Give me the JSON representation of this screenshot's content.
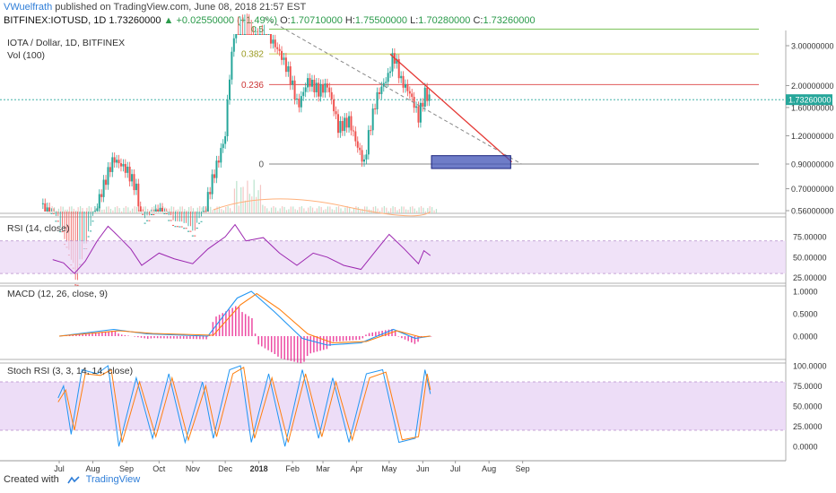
{
  "header": {
    "author": "VWuelfrath",
    "published": "published on TradingView.com, June 08, 2018 21:57 EST",
    "symbol": "BITFINEX:IOTUSD, 1D",
    "last": "1.73260000",
    "change": "+0.02550000 (+1.49%)",
    "o_label": "O:",
    "o": "1.70710000",
    "h_label": "H:",
    "h": "1.75500000",
    "l_label": "L:",
    "l": "1.70280000",
    "c_label": "C:",
    "c": "1.73260000"
  },
  "colors": {
    "up": "#26a69a",
    "down": "#ef5350",
    "price_line": "#26a69a",
    "fib_green": "#7cc35a",
    "fib_yellow": "#c9d14f",
    "fib_red": "#e05a5a",
    "fib_zero": "#888888",
    "rsi": "#9c27b0",
    "rsi_band": "#e9d5f5",
    "macd": "#2196f3",
    "signal": "#ff7f0e",
    "hist": "#e91e8c",
    "stoch_k": "#2196f3",
    "stoch_d": "#ff7f0e",
    "box_fill": "#3f51b5"
  },
  "chart_data": [
    {
      "type": "candlestick",
      "title": "IOTA / Dollar, 1D, BITFINEX",
      "volume_label": "Vol (100)",
      "y_scale": "log",
      "y_ticks": [
        "3.00000000",
        "2.00000000",
        "1.60000000",
        "1.20000000",
        "0.90000000",
        "0.70000000",
        "0.56000000"
      ],
      "last_price_label": "1.73260000",
      "x_ticks": [
        "Jul",
        "Aug",
        "Sep",
        "Oct",
        "Nov",
        "Dec",
        "2018",
        "Feb",
        "Mar",
        "Apr",
        "May",
        "Jun",
        "Jul",
        "Aug",
        "Sep"
      ],
      "fib_levels": [
        {
          "label": "0.5",
          "value": 3.55
        },
        {
          "label": "0.382",
          "value": 2.76
        },
        {
          "label": "0.236",
          "value": 2.02
        },
        {
          "label": "0",
          "value": 0.9
        }
      ],
      "close_series": [
        [
          "2017-06-15",
          0.6
        ],
        [
          "2017-07-01",
          0.45
        ],
        [
          "2017-07-16",
          0.25
        ],
        [
          "2017-07-28",
          0.42
        ],
        [
          "2017-08-10",
          0.7
        ],
        [
          "2017-08-20",
          0.95
        ],
        [
          "2017-09-01",
          0.85
        ],
        [
          "2017-09-10",
          0.7
        ],
        [
          "2017-09-15",
          0.48
        ],
        [
          "2017-10-01",
          0.55
        ],
        [
          "2017-10-15",
          0.47
        ],
        [
          "2017-11-01",
          0.42
        ],
        [
          "2017-11-12",
          0.55
        ],
        [
          "2017-11-25",
          0.95
        ],
        [
          "2017-12-01",
          1.2
        ],
        [
          "2017-12-07",
          2.7
        ],
        [
          "2017-12-12",
          4.5
        ],
        [
          "2017-12-20",
          4.6
        ],
        [
          "2017-12-28",
          3.8
        ],
        [
          "2018-01-05",
          4.2
        ],
        [
          "2018-01-12",
          3.2
        ],
        [
          "2018-01-20",
          2.8
        ],
        [
          "2018-01-28",
          2.3
        ],
        [
          "2018-02-06",
          1.6
        ],
        [
          "2018-02-15",
          2.1
        ],
        [
          "2018-02-25",
          1.9
        ],
        [
          "2018-03-05",
          2.0
        ],
        [
          "2018-03-15",
          1.3
        ],
        [
          "2018-03-25",
          1.4
        ],
        [
          "2018-04-01",
          1.1
        ],
        [
          "2018-04-08",
          0.9
        ],
        [
          "2018-04-20",
          1.8
        ],
        [
          "2018-04-30",
          2.2
        ],
        [
          "2018-05-05",
          2.75
        ],
        [
          "2018-05-12",
          2.1
        ],
        [
          "2018-05-20",
          1.85
        ],
        [
          "2018-05-28",
          1.45
        ],
        [
          "2018-06-03",
          1.85
        ],
        [
          "2018-06-08",
          1.73
        ]
      ],
      "downtrend_line": [
        [
          "2018-05-02",
          2.75
        ],
        [
          "2018-08-22",
          0.92
        ]
      ],
      "dashed_trend_line": [
        [
          "2018-01-06",
          4.0
        ],
        [
          "2018-08-31",
          0.9
        ]
      ],
      "target_box": {
        "x_from": "2018-06-09",
        "x_to": "2018-08-21",
        "y_from": 0.86,
        "y_to": 0.98
      }
    },
    {
      "type": "line",
      "title": "RSI (14, close)",
      "y_ticks": [
        "75.00000",
        "50.00000",
        "25.00000"
      ],
      "band": [
        30,
        70
      ],
      "series": [
        {
          "name": "RSI",
          "values": [
            [
              "2017-06-25",
              47
            ],
            [
              "2017-07-05",
              43
            ],
            [
              "2017-07-15",
              30
            ],
            [
              "2017-07-25",
              45
            ],
            [
              "2017-08-05",
              70
            ],
            [
              "2017-08-15",
              88
            ],
            [
              "2017-08-25",
              75
            ],
            [
              "2017-09-05",
              60
            ],
            [
              "2017-09-15",
              40
            ],
            [
              "2017-10-01",
              55
            ],
            [
              "2017-10-15",
              48
            ],
            [
              "2017-11-01",
              42
            ],
            [
              "2017-11-15",
              60
            ],
            [
              "2017-12-01",
              75
            ],
            [
              "2017-12-10",
              90
            ],
            [
              "2017-12-20",
              70
            ],
            [
              "2018-01-05",
              74
            ],
            [
              "2018-01-20",
              55
            ],
            [
              "2018-02-05",
              40
            ],
            [
              "2018-02-20",
              55
            ],
            [
              "2018-03-05",
              50
            ],
            [
              "2018-03-20",
              40
            ],
            [
              "2018-04-05",
              35
            ],
            [
              "2018-04-20",
              60
            ],
            [
              "2018-05-01",
              78
            ],
            [
              "2018-05-15",
              60
            ],
            [
              "2018-05-28",
              42
            ],
            [
              "2018-06-02",
              58
            ],
            [
              "2018-06-08",
              52
            ]
          ]
        }
      ]
    },
    {
      "type": "line",
      "title": "MACD (12, 26, close, 9)",
      "y_ticks": [
        "1.0000",
        "0.5000",
        "0.0000"
      ],
      "series": [
        {
          "name": "MACD",
          "values": [
            [
              "2017-07-01",
              0.0
            ],
            [
              "2017-08-20",
              0.15
            ],
            [
              "2017-09-20",
              0.05
            ],
            [
              "2017-11-15",
              0.0
            ],
            [
              "2017-12-12",
              0.85
            ],
            [
              "2017-12-25",
              1.0
            ],
            [
              "2018-01-15",
              0.55
            ],
            [
              "2018-02-10",
              -0.05
            ],
            [
              "2018-03-05",
              -0.2
            ],
            [
              "2018-04-05",
              -0.15
            ],
            [
              "2018-05-05",
              0.15
            ],
            [
              "2018-05-25",
              -0.05
            ],
            [
              "2018-06-08",
              0.0
            ]
          ]
        },
        {
          "name": "Signal",
          "values": [
            [
              "2017-07-01",
              0.0
            ],
            [
              "2017-08-25",
              0.12
            ],
            [
              "2017-09-25",
              0.06
            ],
            [
              "2017-11-20",
              0.02
            ],
            [
              "2017-12-15",
              0.7
            ],
            [
              "2017-12-30",
              0.95
            ],
            [
              "2018-01-20",
              0.6
            ],
            [
              "2018-02-15",
              0.05
            ],
            [
              "2018-03-10",
              -0.15
            ],
            [
              "2018-04-10",
              -0.12
            ],
            [
              "2018-05-08",
              0.12
            ],
            [
              "2018-05-30",
              -0.02
            ],
            [
              "2018-06-08",
              0.0
            ]
          ]
        }
      ]
    },
    {
      "type": "line",
      "title": "Stoch RSI (3, 3, 14, 14, close)",
      "y_ticks": [
        "100.0000",
        "75.0000",
        "50.0000",
        "25.0000",
        "0.0000"
      ],
      "band": [
        20,
        80
      ],
      "series": [
        {
          "name": "K",
          "values": [
            [
              "2017-06-30",
              60
            ],
            [
              "2017-07-05",
              75
            ],
            [
              "2017-07-12",
              15
            ],
            [
              "2017-07-22",
              95
            ],
            [
              "2017-08-05",
              90
            ],
            [
              "2017-08-15",
              100
            ],
            [
              "2017-08-25",
              0
            ],
            [
              "2017-09-10",
              85
            ],
            [
              "2017-09-25",
              10
            ],
            [
              "2017-10-10",
              90
            ],
            [
              "2017-10-25",
              5
            ],
            [
              "2017-11-10",
              80
            ],
            [
              "2017-11-20",
              10
            ],
            [
              "2017-12-05",
              95
            ],
            [
              "2017-12-15",
              100
            ],
            [
              "2017-12-25",
              5
            ],
            [
              "2018-01-10",
              90
            ],
            [
              "2018-01-25",
              0
            ],
            [
              "2018-02-10",
              95
            ],
            [
              "2018-02-25",
              10
            ],
            [
              "2018-03-10",
              85
            ],
            [
              "2018-03-25",
              5
            ],
            [
              "2018-04-10",
              90
            ],
            [
              "2018-04-25",
              95
            ],
            [
              "2018-05-10",
              5
            ],
            [
              "2018-05-25",
              10
            ],
            [
              "2018-06-03",
              95
            ],
            [
              "2018-06-08",
              65
            ]
          ]
        },
        {
          "name": "D",
          "values": [
            [
              "2017-06-30",
              55
            ],
            [
              "2017-07-07",
              70
            ],
            [
              "2017-07-15",
              20
            ],
            [
              "2017-07-25",
              90
            ],
            [
              "2017-08-08",
              88
            ],
            [
              "2017-08-18",
              95
            ],
            [
              "2017-08-28",
              5
            ],
            [
              "2017-09-13",
              80
            ],
            [
              "2017-09-28",
              12
            ],
            [
              "2017-10-13",
              85
            ],
            [
              "2017-10-28",
              8
            ],
            [
              "2017-11-13",
              75
            ],
            [
              "2017-11-23",
              12
            ],
            [
              "2017-12-08",
              90
            ],
            [
              "2017-12-18",
              98
            ],
            [
              "2017-12-28",
              10
            ],
            [
              "2018-01-13",
              85
            ],
            [
              "2018-01-28",
              5
            ],
            [
              "2018-02-13",
              90
            ],
            [
              "2018-02-28",
              12
            ],
            [
              "2018-03-13",
              80
            ],
            [
              "2018-03-28",
              8
            ],
            [
              "2018-04-13",
              85
            ],
            [
              "2018-04-28",
              92
            ],
            [
              "2018-05-13",
              8
            ],
            [
              "2018-05-28",
              12
            ],
            [
              "2018-06-05",
              90
            ],
            [
              "2018-06-08",
              70
            ]
          ]
        }
      ]
    }
  ],
  "footer": {
    "created_with": "Created with",
    "brand": "TradingView"
  }
}
